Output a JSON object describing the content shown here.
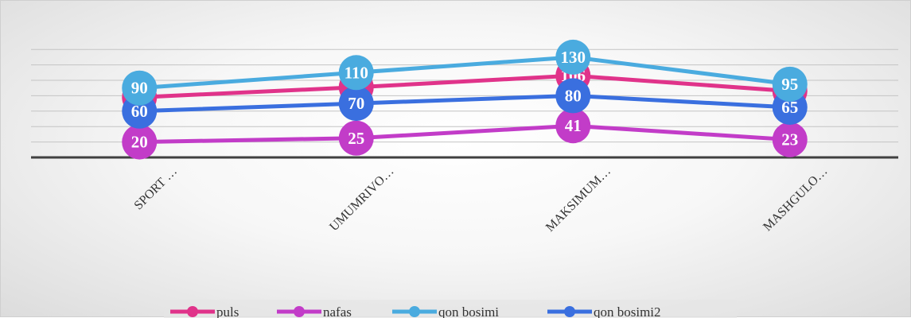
{
  "chart_data": {
    "type": "line",
    "categories": [
      "SPORT …",
      "UMUMRIVO…",
      "MAKSIMUM…",
      "MASHGULO…"
    ],
    "series": [
      {
        "name": "puls",
        "values": [
          78,
          91,
          106,
          86
        ],
        "color": "#e0338a"
      },
      {
        "name": "nafas",
        "values": [
          20,
          25,
          41,
          23
        ],
        "color": "#c23cc8"
      },
      {
        "name": "qon bosimi",
        "values": [
          90,
          110,
          130,
          95
        ],
        "color": "#4aabdf"
      },
      {
        "name": "qon bosimi2",
        "values": [
          60,
          70,
          80,
          65
        ],
        "color": "#3a6fdf"
      }
    ],
    "ylim": [
      0,
      140
    ],
    "grid": true,
    "legend": "bottom"
  }
}
